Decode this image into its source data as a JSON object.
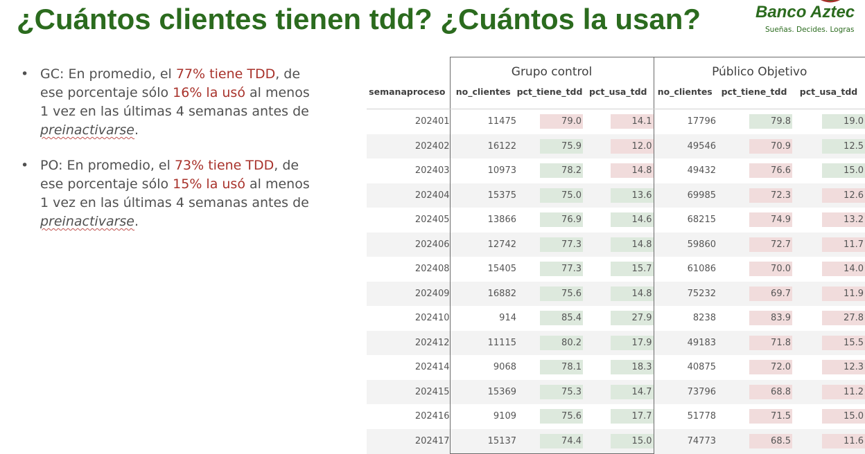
{
  "title": "¿Cuántos clientes tienen tdd? ¿Cuántos la usan?",
  "logo": {
    "brand": "Banco Aztec",
    "tagline": "Sueñas. Decides. Logras",
    "accent_color": "#2b6b1e",
    "mark_color": "#a8322b"
  },
  "bullets": [
    {
      "label": "GC:",
      "t1": " En promedio, el ",
      "h1": "77% tiene TDD",
      "t2": ", de ese porcentaje sólo ",
      "h2": "16% la usó",
      "t3": " al menos 1 vez en las últimas 4 semanas antes de ",
      "italic": "preinactivarse",
      "t4": "."
    },
    {
      "label": "PO:",
      "t1": " En promedio, el ",
      "h1": "73% tiene TDD",
      "t2": ", de ese porcentaje sólo ",
      "h2": "15% la usó",
      "t3": " al menos 1 vez en las últimas 4 semanas antes de ",
      "italic": "preinactivarse",
      "t4": "."
    }
  ],
  "table": {
    "group_headers": [
      "Grupo control",
      "Público Objetivo"
    ],
    "columns": [
      "semanaproceso",
      "no_clientes",
      "pct_tiene_tdd",
      "pct_usa_tdd",
      "no_clientes",
      "pct_tiene_tdd",
      "pct_usa_tdd"
    ],
    "rows": [
      {
        "sem": "202401",
        "gc_n": "11475",
        "gc_tiene": "79.0",
        "gc_tiene_c": "red",
        "gc_usa": "14.1",
        "gc_usa_c": "red",
        "po_n": "17796",
        "po_tiene": "79.8",
        "po_tiene_c": "green",
        "po_usa": "19.0",
        "po_usa_c": "green"
      },
      {
        "sem": "202402",
        "gc_n": "16122",
        "gc_tiene": "75.9",
        "gc_tiene_c": "green",
        "gc_usa": "12.0",
        "gc_usa_c": "red",
        "po_n": "49546",
        "po_tiene": "70.9",
        "po_tiene_c": "red",
        "po_usa": "12.5",
        "po_usa_c": "green"
      },
      {
        "sem": "202403",
        "gc_n": "10973",
        "gc_tiene": "78.2",
        "gc_tiene_c": "green",
        "gc_usa": "14.8",
        "gc_usa_c": "red",
        "po_n": "49432",
        "po_tiene": "76.6",
        "po_tiene_c": "red",
        "po_usa": "15.0",
        "po_usa_c": "green"
      },
      {
        "sem": "202404",
        "gc_n": "15375",
        "gc_tiene": "75.0",
        "gc_tiene_c": "green",
        "gc_usa": "13.6",
        "gc_usa_c": "green",
        "po_n": "69985",
        "po_tiene": "72.3",
        "po_tiene_c": "red",
        "po_usa": "12.6",
        "po_usa_c": "red"
      },
      {
        "sem": "202405",
        "gc_n": "13866",
        "gc_tiene": "76.9",
        "gc_tiene_c": "green",
        "gc_usa": "14.6",
        "gc_usa_c": "green",
        "po_n": "68215",
        "po_tiene": "74.9",
        "po_tiene_c": "red",
        "po_usa": "13.2",
        "po_usa_c": "red"
      },
      {
        "sem": "202406",
        "gc_n": "12742",
        "gc_tiene": "77.3",
        "gc_tiene_c": "green",
        "gc_usa": "14.8",
        "gc_usa_c": "green",
        "po_n": "59860",
        "po_tiene": "72.7",
        "po_tiene_c": "red",
        "po_usa": "11.7",
        "po_usa_c": "red"
      },
      {
        "sem": "202408",
        "gc_n": "15405",
        "gc_tiene": "77.3",
        "gc_tiene_c": "green",
        "gc_usa": "15.7",
        "gc_usa_c": "green",
        "po_n": "61086",
        "po_tiene": "70.0",
        "po_tiene_c": "red",
        "po_usa": "14.0",
        "po_usa_c": "red"
      },
      {
        "sem": "202409",
        "gc_n": "16882",
        "gc_tiene": "75.6",
        "gc_tiene_c": "green",
        "gc_usa": "14.8",
        "gc_usa_c": "green",
        "po_n": "75232",
        "po_tiene": "69.7",
        "po_tiene_c": "red",
        "po_usa": "11.9",
        "po_usa_c": "red"
      },
      {
        "sem": "202410",
        "gc_n": "914",
        "gc_tiene": "85.4",
        "gc_tiene_c": "green",
        "gc_usa": "27.9",
        "gc_usa_c": "green",
        "po_n": "8238",
        "po_tiene": "83.9",
        "po_tiene_c": "red",
        "po_usa": "27.8",
        "po_usa_c": "red"
      },
      {
        "sem": "202412",
        "gc_n": "11115",
        "gc_tiene": "80.2",
        "gc_tiene_c": "green",
        "gc_usa": "17.9",
        "gc_usa_c": "green",
        "po_n": "49183",
        "po_tiene": "71.8",
        "po_tiene_c": "red",
        "po_usa": "15.5",
        "po_usa_c": "red"
      },
      {
        "sem": "202414",
        "gc_n": "9068",
        "gc_tiene": "78.1",
        "gc_tiene_c": "green",
        "gc_usa": "18.3",
        "gc_usa_c": "green",
        "po_n": "40875",
        "po_tiene": "72.0",
        "po_tiene_c": "red",
        "po_usa": "12.3",
        "po_usa_c": "red"
      },
      {
        "sem": "202415",
        "gc_n": "15369",
        "gc_tiene": "75.3",
        "gc_tiene_c": "green",
        "gc_usa": "14.7",
        "gc_usa_c": "green",
        "po_n": "73796",
        "po_tiene": "68.8",
        "po_tiene_c": "red",
        "po_usa": "11.2",
        "po_usa_c": "red"
      },
      {
        "sem": "202416",
        "gc_n": "9109",
        "gc_tiene": "75.6",
        "gc_tiene_c": "green",
        "gc_usa": "17.7",
        "gc_usa_c": "green",
        "po_n": "51778",
        "po_tiene": "71.5",
        "po_tiene_c": "red",
        "po_usa": "15.0",
        "po_usa_c": "red"
      },
      {
        "sem": "202417",
        "gc_n": "15137",
        "gc_tiene": "74.4",
        "gc_tiene_c": "green",
        "gc_usa": "15.0",
        "gc_usa_c": "green",
        "po_n": "74773",
        "po_tiene": "68.5",
        "po_tiene_c": "red",
        "po_usa": "11.6",
        "po_usa_c": "red"
      }
    ]
  },
  "colors": {
    "title_green": "#2b6b1e",
    "highlight_red": "#a8322b",
    "cell_green": "#dde9dd",
    "cell_red": "#f1dcdc"
  }
}
